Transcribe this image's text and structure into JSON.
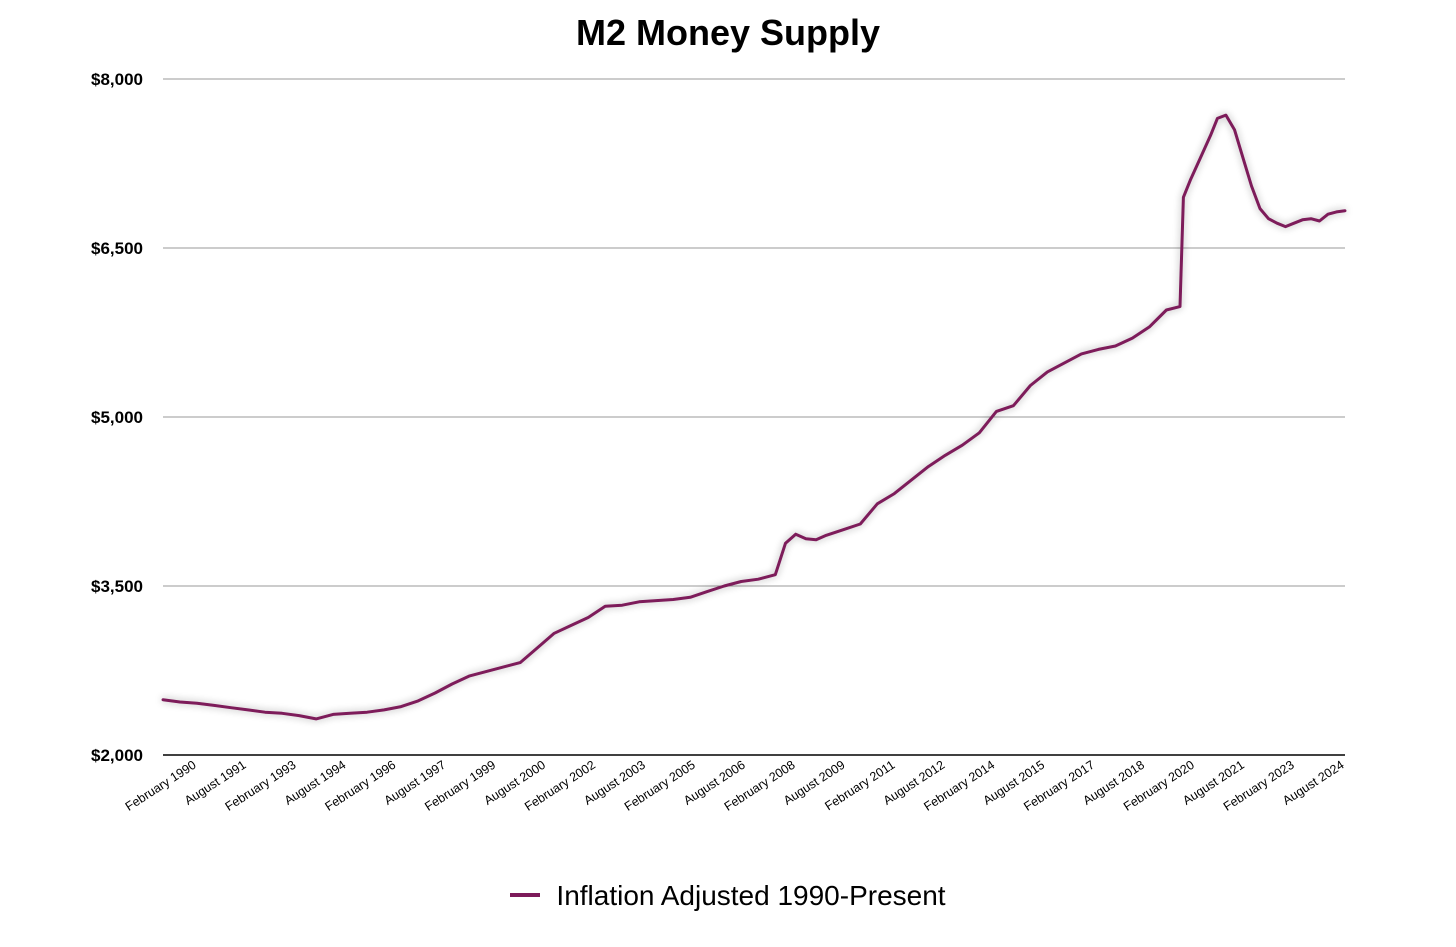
{
  "chart_data": {
    "type": "line",
    "title": "M2 Money Supply",
    "xlabel": "",
    "ylabel": "",
    "ylim": [
      2000,
      8000
    ],
    "y_ticks": [
      "$2,000",
      "$3,500",
      "$5,000",
      "$6,500",
      "$8,000"
    ],
    "y_tick_values": [
      2000,
      3500,
      5000,
      6500,
      8000
    ],
    "grid": "horizontal",
    "legend_position": "bottom",
    "line_color": "#7d1a5a",
    "categories": [
      "February 1990",
      "August 1991",
      "February 1993",
      "August 1994",
      "February 1996",
      "August 1997",
      "February 1999",
      "August 2000",
      "February 2002",
      "August 2003",
      "February 2005",
      "August 2006",
      "February 2008",
      "August 2009",
      "February 2011",
      "August 2012",
      "February 2014",
      "August 2015",
      "February 2017",
      "August 2018",
      "February 2020",
      "August 2021",
      "February 2023",
      "August 2024"
    ],
    "series": [
      {
        "name": "Inflation Adjusted 1990-Present",
        "color": "#7d1a5a",
        "x": [
          1990.0,
          1990.5,
          1991.0,
          1991.5,
          1992.0,
          1992.5,
          1993.0,
          1993.5,
          1994.0,
          1994.5,
          1995.0,
          1995.5,
          1996.0,
          1996.5,
          1997.0,
          1997.5,
          1998.0,
          1998.5,
          1999.0,
          1999.5,
          2000.0,
          2000.5,
          2001.0,
          2001.5,
          2002.0,
          2002.5,
          2003.0,
          2003.5,
          2004.0,
          2004.5,
          2005.0,
          2005.5,
          2006.0,
          2006.5,
          2007.0,
          2007.5,
          2008.0,
          2008.3,
          2008.6,
          2008.9,
          2009.2,
          2009.5,
          2010.0,
          2010.5,
          2011.0,
          2011.5,
          2012.0,
          2012.5,
          2013.0,
          2013.5,
          2014.0,
          2014.5,
          2015.0,
          2015.5,
          2016.0,
          2016.5,
          2017.0,
          2017.5,
          2018.0,
          2018.5,
          2019.0,
          2019.5,
          2019.9,
          2020.0,
          2020.2,
          2020.5,
          2020.8,
          2021.0,
          2021.25,
          2021.5,
          2021.75,
          2022.0,
          2022.25,
          2022.5,
          2022.75,
          2023.0,
          2023.25,
          2023.5,
          2023.75,
          2024.0,
          2024.25,
          2024.5,
          2024.75
        ],
        "y": [
          2490,
          2470,
          2460,
          2440,
          2420,
          2400,
          2380,
          2370,
          2350,
          2320,
          2360,
          2370,
          2380,
          2400,
          2430,
          2480,
          2550,
          2630,
          2700,
          2740,
          2780,
          2820,
          2950,
          3080,
          3150,
          3220,
          3320,
          3330,
          3360,
          3370,
          3380,
          3400,
          3450,
          3500,
          3540,
          3560,
          3600,
          3880,
          3960,
          3920,
          3910,
          3950,
          4000,
          4050,
          4230,
          4320,
          4440,
          4560,
          4660,
          4750,
          4860,
          5050,
          5100,
          5280,
          5400,
          5480,
          5560,
          5600,
          5630,
          5700,
          5800,
          5950,
          5980,
          6950,
          7100,
          7300,
          7500,
          7650,
          7680,
          7550,
          7300,
          7050,
          6850,
          6760,
          6720,
          6690,
          6720,
          6750,
          6760,
          6740,
          6800,
          6820,
          6830
        ]
      }
    ]
  },
  "legend": {
    "label": "Inflation Adjusted 1990-Present"
  }
}
